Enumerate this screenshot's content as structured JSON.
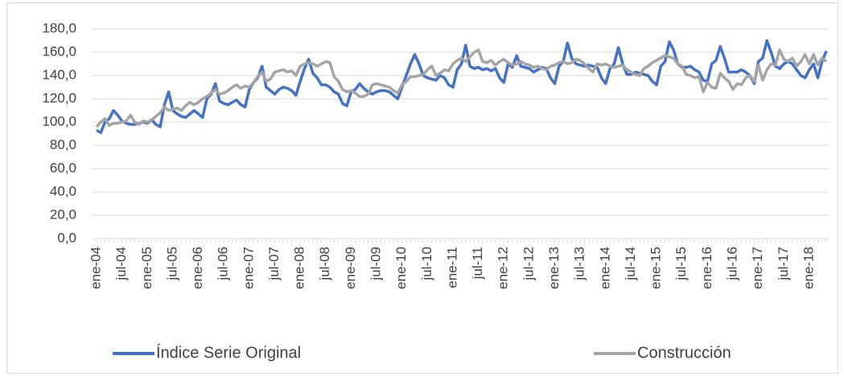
{
  "chart_data": {
    "type": "line",
    "categories": [
      "ene-04",
      null,
      null,
      null,
      null,
      null,
      "jul-04",
      null,
      null,
      null,
      null,
      null,
      "ene-05",
      null,
      null,
      null,
      null,
      null,
      "jul-05",
      null,
      null,
      null,
      null,
      null,
      "ene-06",
      null,
      null,
      null,
      null,
      null,
      "jul-06",
      null,
      null,
      null,
      null,
      null,
      "ene-07",
      null,
      null,
      null,
      null,
      null,
      "jul-07",
      null,
      null,
      null,
      null,
      null,
      "ene-08",
      null,
      null,
      null,
      null,
      null,
      "jul-08",
      null,
      null,
      null,
      null,
      null,
      "ene-09",
      null,
      null,
      null,
      null,
      null,
      "jul-09",
      null,
      null,
      null,
      null,
      null,
      "ene-10",
      null,
      null,
      null,
      null,
      null,
      "jul-10",
      null,
      null,
      null,
      null,
      null,
      "ene-11",
      null,
      null,
      null,
      null,
      null,
      "jul-11",
      null,
      null,
      null,
      null,
      null,
      "ene-12",
      null,
      null,
      null,
      null,
      null,
      "jul-12",
      null,
      null,
      null,
      null,
      null,
      "ene-13",
      null,
      null,
      null,
      null,
      null,
      "jul-13",
      null,
      null,
      null,
      null,
      null,
      "ene-14",
      null,
      null,
      null,
      null,
      null,
      "jul-14",
      null,
      null,
      null,
      null,
      null,
      "ene-15",
      null,
      null,
      null,
      null,
      null,
      "jul-15",
      null,
      null,
      null,
      null,
      null,
      "ene-16",
      null,
      null,
      null,
      null,
      null,
      "jul-16",
      null,
      null,
      null,
      null,
      null,
      "ene-17",
      null,
      null,
      null,
      null,
      null,
      "jul-17",
      null,
      null,
      null,
      null,
      null,
      "ene-18",
      null,
      null,
      null,
      null
    ],
    "series": [
      {
        "name": "Índice Serie Original",
        "color": "#4472c4",
        "values": [
          93,
          91,
          100,
          103,
          110,
          106,
          101,
          99,
          98,
          98,
          99,
          100,
          99,
          102,
          98,
          96,
          115,
          126,
          110,
          107,
          105,
          104,
          107,
          110,
          107,
          104,
          120,
          124,
          133,
          118,
          116,
          115,
          117,
          119,
          115,
          113,
          128,
          134,
          138,
          148,
          130,
          127,
          124,
          128,
          130,
          129,
          127,
          123,
          135,
          146,
          154,
          142,
          138,
          132,
          132,
          130,
          126,
          124,
          116,
          114,
          126,
          128,
          133,
          129,
          126,
          124,
          126,
          127,
          127,
          126,
          123,
          120,
          130,
          140,
          150,
          158,
          150,
          140,
          138,
          137,
          136,
          140,
          138,
          132,
          130,
          145,
          150,
          166,
          148,
          146,
          147,
          145,
          146,
          144,
          146,
          138,
          134,
          150,
          147,
          157,
          148,
          147,
          146,
          143,
          145,
          147,
          146,
          138,
          133,
          148,
          152,
          168,
          155,
          150,
          149,
          148,
          149,
          148,
          147,
          138,
          133,
          146,
          150,
          164,
          150,
          141,
          141,
          143,
          142,
          141,
          140,
          135,
          132,
          148,
          152,
          169,
          162,
          150,
          147,
          147,
          148,
          145,
          143,
          136,
          135,
          150,
          153,
          165,
          155,
          143,
          143,
          143,
          145,
          143,
          140,
          133,
          152,
          155,
          170,
          160,
          148,
          146,
          150,
          152,
          150,
          145,
          140,
          138,
          145,
          150,
          138,
          152,
          161
        ]
      },
      {
        "name": "Construcción",
        "color": "#a5a5a5",
        "values": [
          96,
          100,
          103,
          97,
          99,
          99,
          100,
          101,
          106,
          100,
          98,
          101,
          100,
          102,
          105,
          108,
          113,
          110,
          111,
          112,
          110,
          114,
          117,
          115,
          117,
          120,
          122,
          125,
          128,
          124,
          125,
          127,
          130,
          132,
          129,
          131,
          130,
          134,
          139,
          143,
          135,
          137,
          143,
          144,
          145,
          143,
          144,
          140,
          148,
          150,
          151,
          150,
          148,
          150,
          152,
          151,
          139,
          135,
          128,
          126,
          127,
          125,
          122,
          122,
          124,
          132,
          133,
          132,
          131,
          130,
          127,
          125,
          132,
          135,
          139,
          139,
          140,
          141,
          145,
          148,
          140,
          142,
          145,
          144,
          150,
          153,
          155,
          152,
          156,
          160,
          162,
          152,
          151,
          153,
          149,
          152,
          154,
          151,
          149,
          150,
          152,
          150,
          149,
          147,
          148,
          146,
          145,
          148,
          149,
          151,
          152,
          150,
          151,
          154,
          153,
          150,
          146,
          143,
          150,
          149,
          150,
          148,
          147,
          148,
          149,
          145,
          143,
          141,
          140,
          146,
          148,
          151,
          153,
          155,
          157,
          156,
          155,
          150,
          148,
          141,
          140,
          138,
          139,
          126,
          134,
          130,
          129,
          142,
          138,
          135,
          128,
          133,
          132,
          138,
          140,
          135,
          149,
          136,
          145,
          150,
          149,
          162,
          154,
          152,
          155,
          148,
          152,
          158,
          150,
          158,
          149,
          155,
          152
        ]
      }
    ],
    "ylim": [
      0,
      180
    ],
    "yticks": [
      {
        "value": 0,
        "label": "0,0"
      },
      {
        "value": 20,
        "label": "20,0"
      },
      {
        "value": 40,
        "label": "40,0"
      },
      {
        "value": 60,
        "label": "60,0"
      },
      {
        "value": 80,
        "label": "80,0"
      },
      {
        "value": 100,
        "label": "100,0"
      },
      {
        "value": 120,
        "label": "120,0"
      },
      {
        "value": 140,
        "label": "140,0"
      },
      {
        "value": 160,
        "label": "160,0"
      },
      {
        "value": 180,
        "label": "180,0"
      }
    ],
    "grid": true,
    "legend": "bottom"
  }
}
